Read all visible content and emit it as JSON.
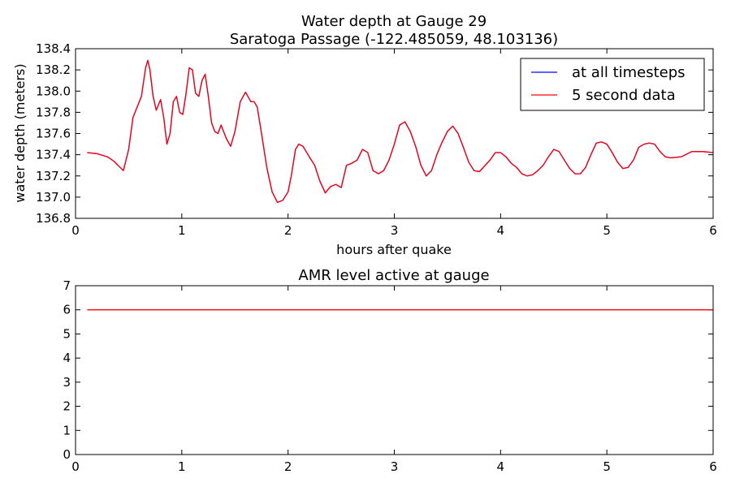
{
  "chart_data": [
    {
      "type": "line",
      "title": "Water depth at Gauge 29",
      "subtitle": "Saratoga Passage  (-122.485059, 48.103136)",
      "xlabel": "hours after quake",
      "ylabel": "water depth (meters)",
      "xlim": [
        0,
        6
      ],
      "ylim": [
        136.8,
        138.4
      ],
      "xticks": [
        "0",
        "1",
        "2",
        "3",
        "4",
        "5",
        "6"
      ],
      "yticks": [
        "136.8",
        "137.0",
        "137.2",
        "137.4",
        "137.6",
        "137.8",
        "138.0",
        "138.2",
        "138.4"
      ],
      "grid": false,
      "legend_position": "top-right",
      "series": [
        {
          "name": "at all timesteps",
          "color": "#0000ff",
          "x": [
            0.11,
            0.2,
            0.3,
            0.36,
            0.4,
            0.45,
            0.5,
            0.54,
            0.58,
            0.62,
            0.66,
            0.68,
            0.7,
            0.73,
            0.76,
            0.8,
            0.83,
            0.86,
            0.89,
            0.92,
            0.95,
            0.98,
            1.01,
            1.04,
            1.07,
            1.1,
            1.13,
            1.16,
            1.19,
            1.22,
            1.25,
            1.28,
            1.31,
            1.34,
            1.37,
            1.42,
            1.46,
            1.5,
            1.55,
            1.6,
            1.65,
            1.68,
            1.71,
            1.75,
            1.8,
            1.85,
            1.9,
            1.95,
            2.0,
            2.03,
            2.07,
            2.1,
            2.14,
            2.2,
            2.25,
            2.3,
            2.35,
            2.4,
            2.45,
            2.5,
            2.55,
            2.6,
            2.65,
            2.7,
            2.75,
            2.8,
            2.85,
            2.9,
            2.95,
            3.0,
            3.05,
            3.1,
            3.15,
            3.2,
            3.25,
            3.3,
            3.35,
            3.4,
            3.45,
            3.5,
            3.55,
            3.6,
            3.65,
            3.7,
            3.75,
            3.8,
            3.9,
            3.95,
            4.0,
            4.05,
            4.1,
            4.15,
            4.2,
            4.25,
            4.3,
            4.35,
            4.4,
            4.45,
            4.5,
            4.55,
            4.6,
            4.65,
            4.7,
            4.75,
            4.8,
            4.85,
            4.9,
            4.95,
            5.0,
            5.05,
            5.1,
            5.15,
            5.2,
            5.25,
            5.3,
            5.35,
            5.4,
            5.45,
            5.5,
            5.55,
            5.6,
            5.7,
            5.8,
            5.9,
            6.0
          ],
          "y": [
            137.42,
            137.41,
            137.38,
            137.34,
            137.3,
            137.25,
            137.45,
            137.75,
            137.85,
            137.95,
            138.22,
            138.29,
            138.2,
            137.95,
            137.82,
            137.92,
            137.75,
            137.5,
            137.6,
            137.9,
            137.95,
            137.8,
            137.78,
            137.98,
            138.22,
            138.2,
            137.98,
            137.95,
            138.1,
            138.16,
            137.95,
            137.7,
            137.62,
            137.6,
            137.68,
            137.55,
            137.48,
            137.62,
            137.9,
            137.99,
            137.9,
            137.9,
            137.85,
            137.6,
            137.28,
            137.05,
            136.95,
            136.97,
            137.05,
            137.2,
            137.45,
            137.5,
            137.48,
            137.38,
            137.3,
            137.15,
            137.04,
            137.1,
            137.12,
            137.09,
            137.3,
            137.32,
            137.35,
            137.45,
            137.42,
            137.25,
            137.22,
            137.25,
            137.35,
            137.5,
            137.68,
            137.71,
            137.62,
            137.48,
            137.3,
            137.2,
            137.25,
            137.4,
            137.52,
            137.62,
            137.67,
            137.6,
            137.47,
            137.33,
            137.25,
            137.24,
            137.35,
            137.42,
            137.42,
            137.38,
            137.32,
            137.28,
            137.22,
            137.2,
            137.21,
            137.25,
            137.3,
            137.38,
            137.45,
            137.43,
            137.35,
            137.27,
            137.22,
            137.22,
            137.28,
            137.4,
            137.51,
            137.52,
            137.5,
            137.42,
            137.33,
            137.27,
            137.28,
            137.35,
            137.47,
            137.5,
            137.51,
            137.5,
            137.43,
            137.38,
            137.37,
            137.38,
            137.43,
            137.43,
            137.42
          ]
        },
        {
          "name": "5 second data",
          "color": "#ff0000",
          "same_as": "at all timesteps"
        }
      ]
    },
    {
      "type": "line",
      "title": "AMR level active at gauge",
      "xlim": [
        0,
        6
      ],
      "ylim": [
        0,
        7
      ],
      "xticks": [
        "0",
        "1",
        "2",
        "3",
        "4",
        "5",
        "6"
      ],
      "yticks": [
        "0",
        "1",
        "2",
        "3",
        "4",
        "5",
        "6",
        "7"
      ],
      "grid": false,
      "series": [
        {
          "color": "#ff0000",
          "x": [
            0.11,
            6.0
          ],
          "y": [
            6,
            6
          ]
        }
      ]
    }
  ]
}
